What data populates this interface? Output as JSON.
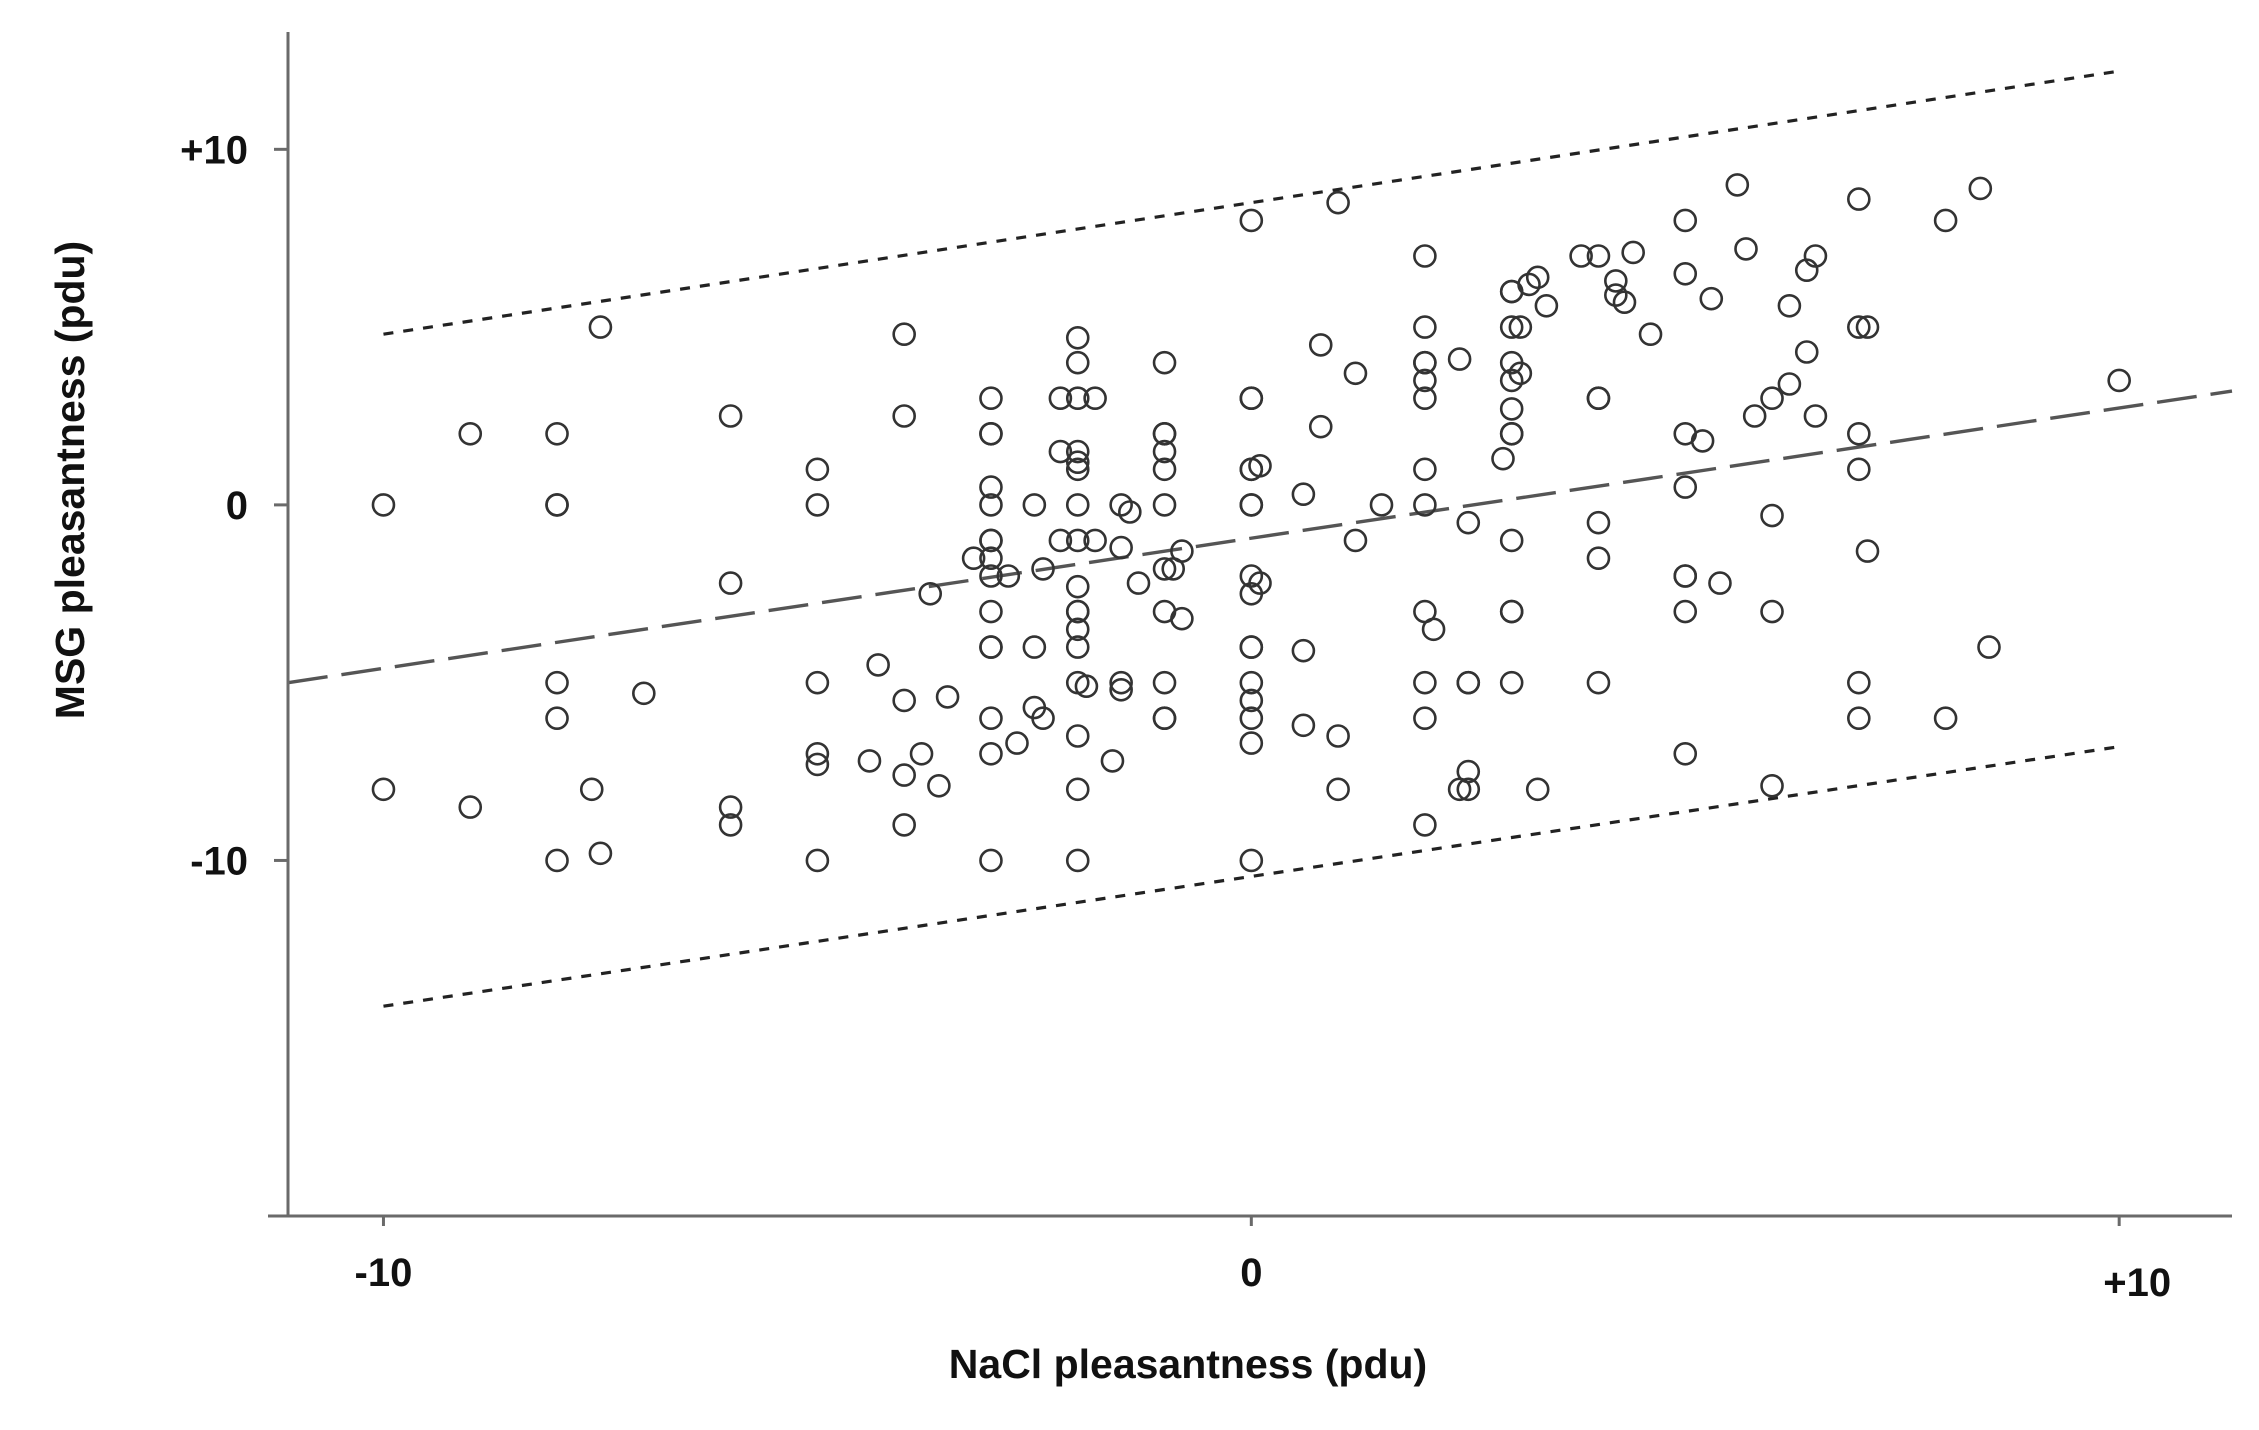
{
  "chart_data": {
    "type": "scatter",
    "title": "",
    "xlabel": "NaCl pleasantness (pdu)",
    "ylabel": "MSG pleasantness (pdu)",
    "xlim": [
      -11.1,
      11.3
    ],
    "ylim": [
      -20,
      13.3
    ],
    "x_ticks": [
      {
        "value": -10,
        "label": "-10"
      },
      {
        "value": 0,
        "label": "0"
      },
      {
        "value": 10,
        "label": "+10"
      }
    ],
    "y_ticks": [
      {
        "value": 10,
        "label": "+10"
      },
      {
        "value": 0,
        "label": "0"
      },
      {
        "value": -10,
        "label": "-10"
      }
    ],
    "grid": false,
    "legend": "none",
    "regression_line": {
      "style": "dashed",
      "points": [
        [
          -11.1,
          -5.0
        ],
        [
          11.3,
          3.2
        ]
      ]
    },
    "prediction_band_upper": {
      "style": "dotted",
      "points": [
        [
          -10,
          4.8
        ],
        [
          10,
          12.2
        ]
      ]
    },
    "prediction_band_lower": {
      "style": "dotted",
      "points": [
        [
          -10,
          -14.1
        ],
        [
          10,
          -6.8
        ]
      ]
    },
    "points": [
      [
        -10,
        0
      ],
      [
        -10,
        -8
      ],
      [
        -9,
        2
      ],
      [
        -9,
        -8.5
      ],
      [
        -8,
        2
      ],
      [
        -8,
        0
      ],
      [
        -8,
        0
      ],
      [
        -8,
        -5
      ],
      [
        -8,
        -6
      ],
      [
        -8,
        -10
      ],
      [
        -7.5,
        5
      ],
      [
        -7.6,
        -8
      ],
      [
        -7.5,
        -9.8
      ],
      [
        -7,
        -5.3
      ],
      [
        -6,
        2.5
      ],
      [
        -6,
        -2.2
      ],
      [
        -6,
        -8.5
      ],
      [
        -6,
        -9
      ],
      [
        -5,
        1
      ],
      [
        -5,
        0
      ],
      [
        -5,
        -5
      ],
      [
        -5,
        -7
      ],
      [
        -5,
        -7.3
      ],
      [
        -5,
        -10
      ],
      [
        -4.4,
        -7.2
      ],
      [
        -4.3,
        -4.5
      ],
      [
        -4,
        4.8
      ],
      [
        -4,
        2.5
      ],
      [
        -4,
        -5.5
      ],
      [
        -4,
        -7.6
      ],
      [
        -4,
        -9
      ],
      [
        -3.8,
        -7
      ],
      [
        -3.7,
        -2.5
      ],
      [
        -3.6,
        -7.9
      ],
      [
        -3.5,
        -5.4
      ],
      [
        -3.2,
        -1.5
      ],
      [
        -3,
        3
      ],
      [
        -3,
        2
      ],
      [
        -3,
        2
      ],
      [
        -3,
        0.5
      ],
      [
        -3,
        0
      ],
      [
        -3,
        -1
      ],
      [
        -3,
        -1
      ],
      [
        -3,
        -1.5
      ],
      [
        -3,
        -2
      ],
      [
        -3,
        -3
      ],
      [
        -3,
        -4
      ],
      [
        -3,
        -4
      ],
      [
        -3,
        -6
      ],
      [
        -3,
        -7
      ],
      [
        -3,
        -10
      ],
      [
        -2.8,
        -2
      ],
      [
        -2.7,
        -6.7
      ],
      [
        -2.5,
        -5.7
      ],
      [
        -2.5,
        0
      ],
      [
        -2.5,
        -4
      ],
      [
        -2.4,
        -1.8
      ],
      [
        -2.4,
        -6
      ],
      [
        -2.2,
        3
      ],
      [
        -2.2,
        1.5
      ],
      [
        -2.2,
        -1
      ],
      [
        -2,
        4.7
      ],
      [
        -2,
        4
      ],
      [
        -2,
        3
      ],
      [
        -2,
        1.5
      ],
      [
        -2,
        1.2
      ],
      [
        -2,
        1
      ],
      [
        -2,
        0
      ],
      [
        -2,
        -1
      ],
      [
        -2,
        -2.3
      ],
      [
        -2,
        -3
      ],
      [
        -2,
        -3
      ],
      [
        -2,
        -3.5
      ],
      [
        -2,
        -4
      ],
      [
        -2,
        -5
      ],
      [
        -2,
        -6.5
      ],
      [
        -2,
        -8
      ],
      [
        -2,
        -10
      ],
      [
        -1.8,
        3
      ],
      [
        -1.9,
        -5.1
      ],
      [
        -1.8,
        -1
      ],
      [
        -1.6,
        -7.2
      ],
      [
        -1.5,
        0
      ],
      [
        -1.5,
        -1.2
      ],
      [
        -1.5,
        -5
      ],
      [
        -1.5,
        -5.2
      ],
      [
        -1.4,
        -0.2
      ],
      [
        -1.3,
        -2.2
      ],
      [
        -1,
        4
      ],
      [
        -1,
        2
      ],
      [
        -1,
        2
      ],
      [
        -1,
        1.5
      ],
      [
        -1,
        1
      ],
      [
        -1,
        0
      ],
      [
        -1,
        -1.8
      ],
      [
        -1,
        -3
      ],
      [
        -1,
        -5
      ],
      [
        -1,
        -6
      ],
      [
        -1,
        -6
      ],
      [
        -0.9,
        -1.8
      ],
      [
        -0.8,
        -1.3
      ],
      [
        -0.8,
        -3.2
      ],
      [
        0,
        8
      ],
      [
        0,
        3
      ],
      [
        0,
        3
      ],
      [
        0,
        1
      ],
      [
        0,
        1
      ],
      [
        0,
        0
      ],
      [
        0,
        0
      ],
      [
        0,
        -2
      ],
      [
        0,
        -2.5
      ],
      [
        0,
        -4
      ],
      [
        0,
        -4
      ],
      [
        0,
        -5
      ],
      [
        0,
        -5.5
      ],
      [
        0,
        -6
      ],
      [
        0,
        -6.7
      ],
      [
        0,
        -10
      ],
      [
        0.1,
        1.1
      ],
      [
        0.1,
        -2.2
      ],
      [
        0.6,
        0.3
      ],
      [
        0.6,
        -4.1
      ],
      [
        0.6,
        -6.2
      ],
      [
        0.8,
        2.2
      ],
      [
        0.8,
        4.5
      ],
      [
        1,
        8.5
      ],
      [
        1,
        -6.5
      ],
      [
        1,
        -8
      ],
      [
        1.2,
        3.7
      ],
      [
        1.2,
        -1
      ],
      [
        1.5,
        0
      ],
      [
        2,
        7
      ],
      [
        2,
        5
      ],
      [
        2,
        4
      ],
      [
        2,
        4
      ],
      [
        2,
        3.5
      ],
      [
        2,
        3
      ],
      [
        2,
        1
      ],
      [
        2,
        0
      ],
      [
        2,
        -3
      ],
      [
        2,
        -5
      ],
      [
        2,
        -6
      ],
      [
        2,
        -9
      ],
      [
        2.1,
        -3.5
      ],
      [
        2.4,
        4.1
      ],
      [
        2.4,
        -8
      ],
      [
        2.5,
        -0.5
      ],
      [
        2.5,
        -5
      ],
      [
        2.5,
        -5
      ],
      [
        2.5,
        -7.5
      ],
      [
        2.5,
        -8
      ],
      [
        2.9,
        1.3
      ],
      [
        3,
        6
      ],
      [
        3,
        6
      ],
      [
        3,
        5
      ],
      [
        3,
        4
      ],
      [
        3,
        3.5
      ],
      [
        3,
        2.7
      ],
      [
        3,
        2
      ],
      [
        3,
        2
      ],
      [
        3,
        -1
      ],
      [
        3,
        -3
      ],
      [
        3,
        -3
      ],
      [
        3,
        -5
      ],
      [
        3.1,
        5
      ],
      [
        3.1,
        3.7
      ],
      [
        3.2,
        6.2
      ],
      [
        3.3,
        6.4
      ],
      [
        3.3,
        -8
      ],
      [
        3.4,
        5.6
      ],
      [
        3.8,
        7
      ],
      [
        4,
        7
      ],
      [
        4,
        3
      ],
      [
        4,
        3
      ],
      [
        4,
        -0.5
      ],
      [
        4,
        -1.5
      ],
      [
        4,
        -5
      ],
      [
        4.2,
        6.3
      ],
      [
        4.2,
        5.9
      ],
      [
        4.3,
        5.7
      ],
      [
        4.4,
        7.1
      ],
      [
        4.6,
        4.8
      ],
      [
        5,
        8
      ],
      [
        5,
        6.5
      ],
      [
        5,
        2
      ],
      [
        5,
        0.5
      ],
      [
        5,
        -2
      ],
      [
        5,
        -2
      ],
      [
        5,
        -3
      ],
      [
        5,
        -7
      ],
      [
        5.2,
        1.8
      ],
      [
        5.3,
        5.8
      ],
      [
        5.4,
        -2.2
      ],
      [
        5.6,
        9
      ],
      [
        5.7,
        7.2
      ],
      [
        5.8,
        2.5
      ],
      [
        6,
        3
      ],
      [
        6,
        -0.3
      ],
      [
        6,
        -3
      ],
      [
        6,
        -7.9
      ],
      [
        6.2,
        5.6
      ],
      [
        6.2,
        3.4
      ],
      [
        6.4,
        6.6
      ],
      [
        6.4,
        4.3
      ],
      [
        6.5,
        7
      ],
      [
        6.5,
        2.5
      ],
      [
        7,
        8.6
      ],
      [
        7,
        5
      ],
      [
        7,
        2
      ],
      [
        7,
        1
      ],
      [
        7,
        -5
      ],
      [
        7,
        -6
      ],
      [
        7.1,
        5
      ],
      [
        7.1,
        -1.3
      ],
      [
        8,
        8
      ],
      [
        8,
        -6
      ],
      [
        8.4,
        8.9
      ],
      [
        8.5,
        -4
      ],
      [
        10,
        3.5
      ]
    ]
  }
}
